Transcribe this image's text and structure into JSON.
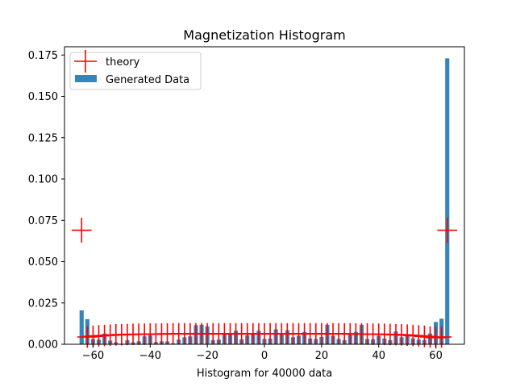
{
  "chart_data": {
    "type": "bar",
    "title": "Magnetization Histogram",
    "xlabel": "Histogram for 40000 data",
    "ylabel": "",
    "xlim": [
      -70,
      70
    ],
    "ylim": [
      0,
      0.18
    ],
    "x_ticks": [
      -60,
      -40,
      -20,
      0,
      20,
      40,
      60
    ],
    "x_tick_labels": [
      "−60",
      "−40",
      "−20",
      "0",
      "20",
      "40",
      "60"
    ],
    "y_ticks": [
      0.0,
      0.025,
      0.05,
      0.075,
      0.1,
      0.125,
      0.15,
      0.175
    ],
    "y_tick_labels": [
      "0.000",
      "0.025",
      "0.050",
      "0.075",
      "0.100",
      "0.125",
      "0.150",
      "0.175"
    ],
    "grid": false,
    "legend": {
      "position": "upper-left",
      "entries": [
        {
          "label": "theory",
          "marker": "plus",
          "color": "#ff0000"
        },
        {
          "label": "Generated Data",
          "marker": "bar",
          "color": "#1f77b4"
        }
      ]
    },
    "series": [
      {
        "name": "Generated Data",
        "kind": "bar",
        "color": "#1f77b4",
        "bar_width": 1.45,
        "x": [
          -64,
          -62,
          -60,
          -58,
          -56,
          -54,
          -52,
          -50,
          -48,
          -46,
          -44,
          -42,
          -40,
          -38,
          -36,
          -34,
          -32,
          -30,
          -28,
          -26,
          -24,
          -22,
          -20,
          -18,
          -16,
          -14,
          -12,
          -10,
          -8,
          -6,
          -4,
          -2,
          0,
          2,
          4,
          6,
          8,
          10,
          12,
          14,
          16,
          18,
          20,
          22,
          24,
          26,
          28,
          30,
          32,
          34,
          36,
          38,
          40,
          42,
          44,
          46,
          48,
          50,
          52,
          54,
          56,
          58,
          60,
          62,
          64
        ],
        "values": [
          0.0205,
          0.0152,
          0.0032,
          0.0028,
          0.0065,
          0.0022,
          0.0012,
          0.0004,
          0.0025,
          0.0012,
          0.0018,
          0.0048,
          0.0055,
          0.0013,
          0.0018,
          0.0017,
          0.0006,
          0.0028,
          0.0042,
          0.0048,
          0.0115,
          0.0118,
          0.0108,
          0.0025,
          0.0028,
          0.0062,
          0.0065,
          0.0082,
          0.003,
          0.0055,
          0.0065,
          0.0082,
          0.0032,
          0.0035,
          0.009,
          0.0065,
          0.0085,
          0.0042,
          0.0052,
          0.0075,
          0.0035,
          0.0032,
          0.0045,
          0.0118,
          0.0052,
          0.0032,
          0.0025,
          0.0065,
          0.0075,
          0.0118,
          0.0032,
          0.003,
          0.0052,
          0.0035,
          0.0025,
          0.0078,
          0.0042,
          0.0052,
          0.0035,
          0.0028,
          0.0025,
          0.0065,
          0.0135,
          0.0155,
          0.173
        ]
      },
      {
        "name": "theory",
        "kind": "errorbar",
        "color": "#ff0000",
        "x": [
          -64,
          -62,
          -60,
          -58,
          -56,
          -54,
          -52,
          -50,
          -48,
          -46,
          -44,
          -42,
          -40,
          -38,
          -36,
          -34,
          -32,
          -30,
          -28,
          -26,
          -24,
          -22,
          -20,
          -18,
          -16,
          -14,
          -12,
          -10,
          -8,
          -6,
          -4,
          -2,
          0,
          2,
          4,
          6,
          8,
          10,
          12,
          14,
          16,
          18,
          20,
          22,
          24,
          26,
          28,
          30,
          32,
          34,
          36,
          38,
          40,
          42,
          44,
          46,
          48,
          50,
          52,
          54,
          56,
          58,
          60,
          62,
          64
        ],
        "y": [
          0.069,
          0.0044,
          0.0048,
          0.0051,
          0.0053,
          0.0055,
          0.0057,
          0.0058,
          0.0059,
          0.006,
          0.0061,
          0.0061,
          0.0062,
          0.0062,
          0.0062,
          0.0063,
          0.0063,
          0.0063,
          0.0063,
          0.0063,
          0.0063,
          0.0063,
          0.0063,
          0.0063,
          0.0063,
          0.0063,
          0.0063,
          0.0063,
          0.0063,
          0.0063,
          0.0063,
          0.0063,
          0.0063,
          0.0063,
          0.0063,
          0.0063,
          0.0063,
          0.0063,
          0.0063,
          0.0063,
          0.0063,
          0.0063,
          0.0063,
          0.0063,
          0.0063,
          0.0063,
          0.0063,
          0.0063,
          0.0062,
          0.0062,
          0.0062,
          0.0061,
          0.0061,
          0.006,
          0.0059,
          0.0058,
          0.0057,
          0.0055,
          0.0053,
          0.0051,
          0.0048,
          0.0044,
          0.004,
          0.0044,
          0.069
        ],
        "yerr": [
          0.0075,
          0.0065,
          0.0065,
          0.0065,
          0.0065,
          0.0065,
          0.0065,
          0.0065,
          0.0065,
          0.0065,
          0.0065,
          0.0065,
          0.0065,
          0.0065,
          0.0065,
          0.0065,
          0.0065,
          0.0065,
          0.0065,
          0.0065,
          0.0065,
          0.0065,
          0.0065,
          0.0065,
          0.0065,
          0.0065,
          0.0065,
          0.0065,
          0.0065,
          0.0065,
          0.0065,
          0.0065,
          0.0065,
          0.0065,
          0.0065,
          0.0065,
          0.0065,
          0.0065,
          0.0065,
          0.0065,
          0.0065,
          0.0065,
          0.0065,
          0.0065,
          0.0065,
          0.0065,
          0.0065,
          0.0065,
          0.0065,
          0.0065,
          0.0065,
          0.0065,
          0.0065,
          0.0065,
          0.0065,
          0.0065,
          0.0065,
          0.0065,
          0.0065,
          0.0065,
          0.0065,
          0.0065,
          0.0065,
          0.0065,
          0.0075
        ],
        "xerr": 3.5
      }
    ]
  }
}
